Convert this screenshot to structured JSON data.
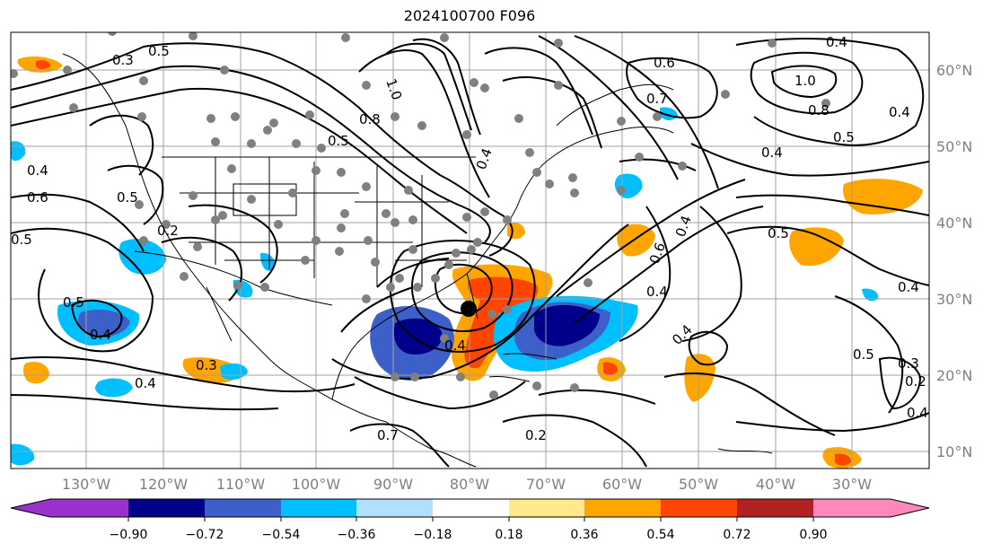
{
  "title": "2024100700 F096",
  "map": {
    "longitude_labels": [
      "130°W",
      "120°W",
      "110°W",
      "100°W",
      "90°W",
      "80°W",
      "70°W",
      "60°W",
      "50°W",
      "40°W",
      "30°W"
    ],
    "latitude_labels": [
      "60°N",
      "50°N",
      "40°N",
      "30°N",
      "20°N",
      "10°N"
    ],
    "contour_labels": [
      "0.5",
      "0.3",
      "1.0",
      "0.8",
      "0.6",
      "0.4",
      "0.5",
      "0.4",
      "1.0",
      "0.8",
      "0.5",
      "0.7",
      "0.4",
      "0.4",
      "0.5",
      "0.4",
      "0.6",
      "0.2",
      "0.5",
      "0.4",
      "0.3",
      "0.4",
      "0.5",
      "0.4",
      "0.4",
      "0.4",
      "0.7",
      "0.3",
      "0.2",
      "0.5",
      "0.4",
      "0.5",
      "0.4",
      "0.6",
      "0.4",
      "0.2"
    ],
    "colors": {
      "grid": "#a0a0a0",
      "contour": "#000000",
      "station_dot": "#808080",
      "storm_center": "#000000"
    }
  },
  "colorbar": {
    "tick_labels": [
      "−0.90",
      "−0.72",
      "−0.54",
      "−0.36",
      "−0.18",
      "0.18",
      "0.36",
      "0.54",
      "0.72",
      "0.90"
    ],
    "colors": [
      "#9932cc",
      "#00008b",
      "#3c5fc8",
      "#00bfff",
      "#b0e0ff",
      "#ffffff",
      "#ffe98a",
      "#ffa500",
      "#ff4500",
      "#b22222",
      "#ff88bb"
    ]
  }
}
